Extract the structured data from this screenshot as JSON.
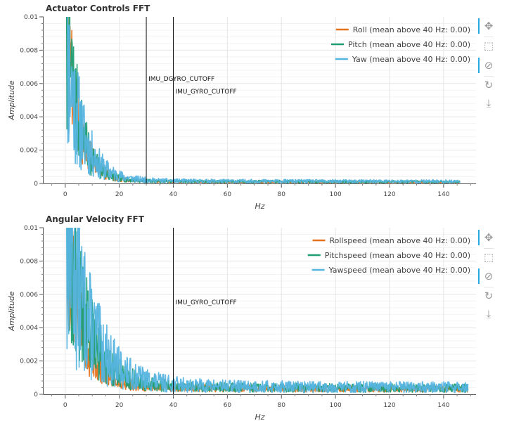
{
  "toolbar_icons": [
    "pan-icon",
    "box-zoom-icon",
    "wheel-zoom-icon",
    "reset-icon",
    "save-icon"
  ],
  "chart_data": [
    {
      "type": "line",
      "title": "Actuator Controls FFT",
      "xlabel": "Hz",
      "ylabel": "Amplitude",
      "xlim": [
        -8,
        152
      ],
      "ylim": [
        0,
        0.01
      ],
      "xticks": [
        "0",
        "20",
        "40",
        "60",
        "80",
        "100",
        "120",
        "140"
      ],
      "yticks": [
        "0",
        "0.002",
        "0.004",
        "0.006",
        "0.008",
        "0.01"
      ],
      "grid": true,
      "legend_position": "top-right",
      "x_max": 146,
      "series": [
        {
          "name": "Roll (mean above 40 Hz: 0.00)",
          "color": "#e5731e",
          "peak": 0.0098,
          "tail": 8e-05,
          "decay": 5,
          "noise": 0.6,
          "seed": 3
        },
        {
          "name": "Pitch (mean above 40 Hz: 0.00)",
          "color": "#1d9e74",
          "peak": 0.0099,
          "tail": 0.0001,
          "decay": 5,
          "noise": 0.7,
          "seed": 7
        },
        {
          "name": "Yaw (mean above 40 Hz: 0.00)",
          "color": "#56b4e0",
          "peak": 0.0083,
          "tail": 0.00012,
          "decay": 6,
          "noise": 0.8,
          "seed": 11
        }
      ],
      "vlines": [
        {
          "x": 30,
          "label": "IMU_DGYRO_CUTOFF",
          "label_y": 0.00615
        },
        {
          "x": 40,
          "label": "IMU_GYRO_CUTOFF",
          "label_y": 0.0054
        }
      ]
    },
    {
      "type": "line",
      "title": "Angular Velocity FFT",
      "xlabel": "Hz",
      "ylabel": "Amplitude",
      "xlim": [
        -8,
        152
      ],
      "ylim": [
        0,
        0.01
      ],
      "xticks": [
        "0",
        "20",
        "40",
        "60",
        "80",
        "100",
        "120",
        "140"
      ],
      "yticks": [
        "0",
        "0.002",
        "0.004",
        "0.006",
        "0.008",
        "0.01"
      ],
      "grid": true,
      "legend_position": "top-right",
      "x_max": 149,
      "series": [
        {
          "name": "Rollspeed (mean above 40 Hz: 0.00)",
          "color": "#e5731e",
          "peak": 0.01,
          "tail": 0.0003,
          "decay": 6,
          "noise": 0.6,
          "seed": 5
        },
        {
          "name": "Pitchspeed (mean above 40 Hz: 0.00)",
          "color": "#1d9e74",
          "peak": 0.01,
          "tail": 0.00035,
          "decay": 8,
          "noise": 0.7,
          "seed": 9
        },
        {
          "name": "Yawspeed (mean above 40 Hz: 0.00)",
          "color": "#56b4e0",
          "peak": 0.01,
          "tail": 0.0004,
          "decay": 9,
          "noise": 0.8,
          "seed": 13
        }
      ],
      "vlines": [
        {
          "x": 40,
          "label": "IMU_GYRO_CUTOFF",
          "label_y": 0.0054
        }
      ]
    }
  ]
}
